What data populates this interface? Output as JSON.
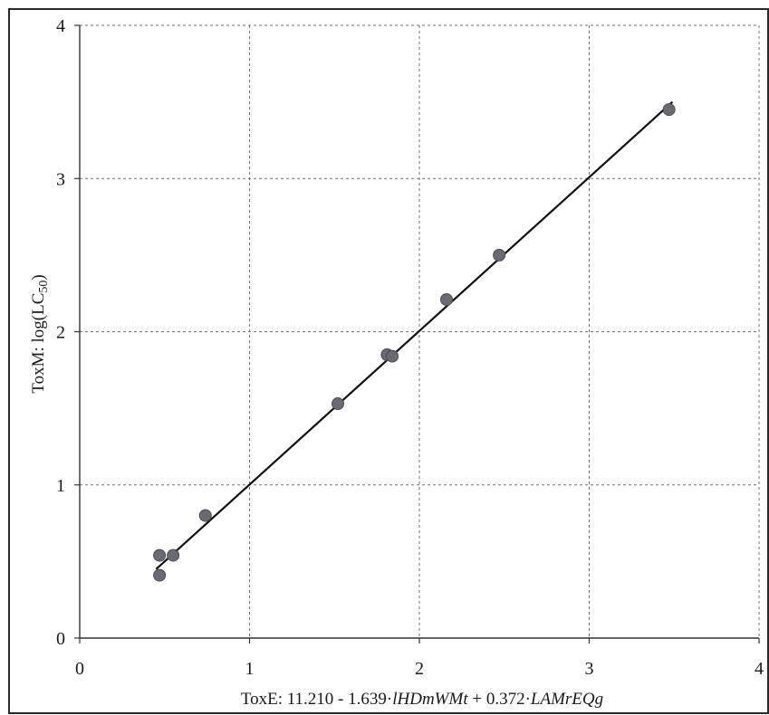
{
  "chart_data": {
    "type": "scatter",
    "x_ticks": [
      "0",
      "1",
      "2",
      "3",
      "4"
    ],
    "y_ticks": [
      "0",
      "1",
      "2",
      "3",
      "4"
    ],
    "xlim": [
      0,
      4
    ],
    "ylim": [
      0,
      4
    ],
    "grid": true,
    "xlabel": {
      "prefix": "ToxE: 11.210 - 1.639·",
      "term1": "lHDmWMt",
      "middle": " + 0.372·",
      "term2": "LAMrEQg"
    },
    "ylabel": "ToxM: log(LC50)",
    "points": [
      {
        "x": 0.47,
        "y": 0.54
      },
      {
        "x": 0.47,
        "y": 0.41
      },
      {
        "x": 0.55,
        "y": 0.54
      },
      {
        "x": 0.74,
        "y": 0.8
      },
      {
        "x": 1.52,
        "y": 1.53
      },
      {
        "x": 1.81,
        "y": 1.85
      },
      {
        "x": 1.84,
        "y": 1.84
      },
      {
        "x": 2.16,
        "y": 2.21
      },
      {
        "x": 2.47,
        "y": 2.5
      },
      {
        "x": 3.47,
        "y": 3.45
      }
    ],
    "fit_line": {
      "x": [
        0.45,
        3.49
      ],
      "y": [
        0.45,
        3.5
      ]
    },
    "colors": {
      "point": "#6a6a72",
      "line": "#111111",
      "grid": "#6f6f6f",
      "frame": "#2a2a2a"
    }
  }
}
